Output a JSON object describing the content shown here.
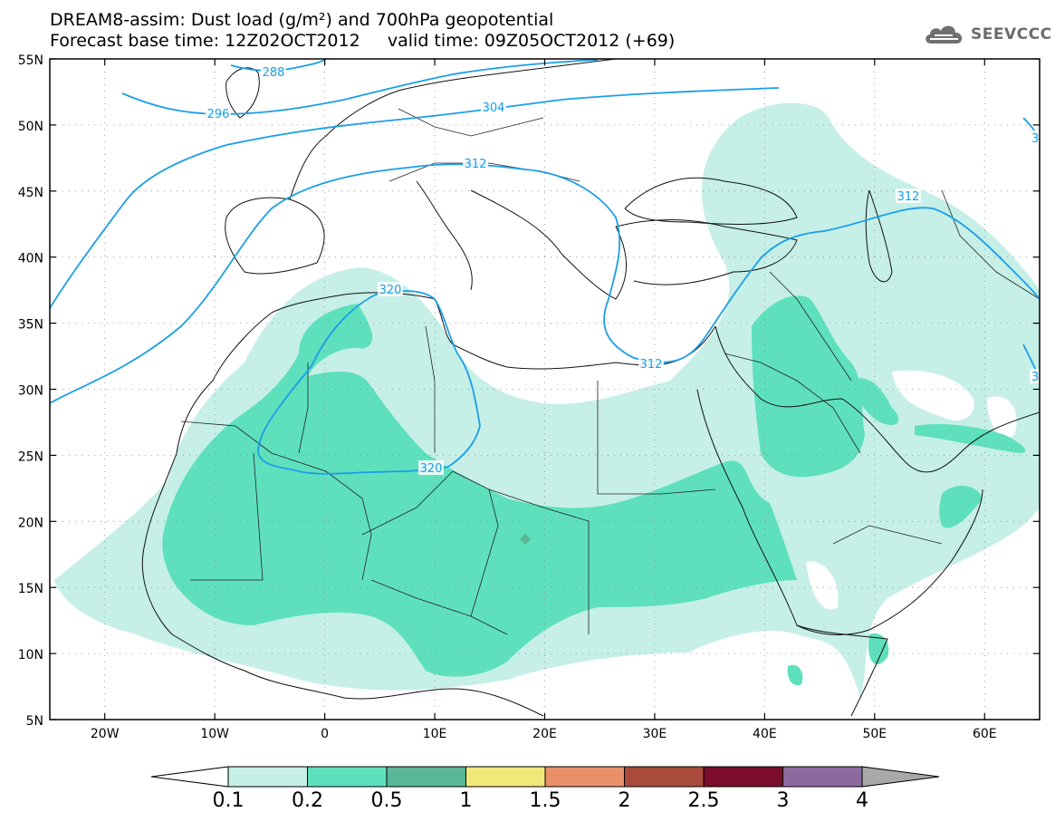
{
  "header": {
    "title_line1": "DREAM8-assim: Dust load (g/m²) and 700hPa geopotential",
    "title_line2": "Forecast base time: 12Z02OCT2012     valid time: 09Z05OCT2012 (+69)"
  },
  "logo": {
    "text": "SEEVCCC",
    "icon": "cloud-icon"
  },
  "map": {
    "lat_ticks": [
      "55N",
      "50N",
      "45N",
      "40N",
      "35N",
      "30N",
      "25N",
      "20N",
      "15N",
      "10N",
      "5N"
    ],
    "lon_ticks": [
      "20W",
      "10W",
      "0",
      "10E",
      "20E",
      "30E",
      "40E",
      "50E",
      "60E"
    ],
    "contour_labels": [
      "288",
      "296",
      "304",
      "312",
      "312",
      "312",
      "320",
      "320",
      "3",
      "3"
    ]
  },
  "colorbar": {
    "labels": [
      "0.1",
      "0.2",
      "0.5",
      "1",
      "1.5",
      "2",
      "2.5",
      "3",
      "4"
    ],
    "colors": [
      "#c5efe7",
      "#5ee0bd",
      "#5bb897",
      "#f2e87a",
      "#e9906b",
      "#a94b3d",
      "#7a0d2b",
      "#8c6aa0",
      "#a8a8a8"
    ],
    "under_color": "#ffffff"
  },
  "legend_colors": {
    "contour_line": "#1a9ee8",
    "dust_light": "#c5efe7",
    "dust_medium": "#5ee0bd"
  }
}
